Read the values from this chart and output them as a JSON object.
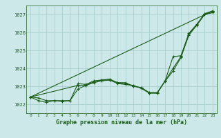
{
  "title": "Graphe pression niveau de la mer (hPa)",
  "bg_color": "#cde8e8",
  "grid_color": "#aacece",
  "line_color": "#1a5c1a",
  "spine_color": "#1a5c1a",
  "x_min": -0.5,
  "x_max": 23.5,
  "y_min": 1021.5,
  "y_max": 1027.5,
  "yticks": [
    1022,
    1023,
    1024,
    1025,
    1026,
    1027
  ],
  "xticks": [
    0,
    1,
    2,
    3,
    4,
    5,
    6,
    7,
    8,
    9,
    10,
    11,
    12,
    13,
    14,
    15,
    16,
    17,
    18,
    19,
    20,
    21,
    22,
    23
  ],
  "lines": [
    {
      "x": [
        0,
        1,
        2,
        3,
        4,
        5,
        6,
        7,
        8,
        9,
        10,
        11,
        12,
        13,
        14,
        15,
        16,
        17,
        18,
        19,
        20,
        21,
        22,
        23
      ],
      "y": [
        1022.4,
        1022.35,
        1022.2,
        1022.2,
        1022.2,
        1022.2,
        1023.15,
        1023.1,
        1023.3,
        1023.35,
        1023.35,
        1023.2,
        1023.15,
        1023.0,
        1022.92,
        1022.65,
        1022.65,
        1023.3,
        1024.0,
        1024.65,
        1025.95,
        1026.45,
        1027.05,
        1027.2
      ]
    },
    {
      "x": [
        0,
        1,
        2,
        3,
        4,
        5,
        6,
        7,
        8,
        9,
        10,
        11,
        12,
        13,
        14,
        15,
        16,
        17,
        18,
        19,
        20,
        21,
        22,
        23
      ],
      "y": [
        1022.4,
        1022.2,
        1022.1,
        1022.2,
        1022.15,
        1022.2,
        1022.85,
        1023.05,
        1023.2,
        1023.3,
        1023.35,
        1023.15,
        1023.1,
        1023.05,
        1022.88,
        1022.62,
        1022.62,
        1023.28,
        1023.85,
        1024.6,
        1025.85,
        1026.4,
        1027.0,
        1027.1
      ]
    },
    {
      "x": [
        0,
        23
      ],
      "y": [
        1022.4,
        1027.2
      ]
    },
    {
      "x": [
        0,
        6,
        7,
        8,
        9,
        10,
        11,
        12,
        13,
        14,
        15,
        16,
        17,
        18,
        19,
        20,
        21,
        22,
        23
      ],
      "y": [
        1022.4,
        1023.05,
        1023.05,
        1023.25,
        1023.35,
        1023.4,
        1023.2,
        1023.2,
        1023.0,
        1022.92,
        1022.62,
        1022.62,
        1023.3,
        1024.65,
        1024.7,
        1025.92,
        1026.43,
        1027.03,
        1027.15
      ]
    }
  ],
  "figwidth": 3.2,
  "figheight": 2.0,
  "dpi": 100
}
